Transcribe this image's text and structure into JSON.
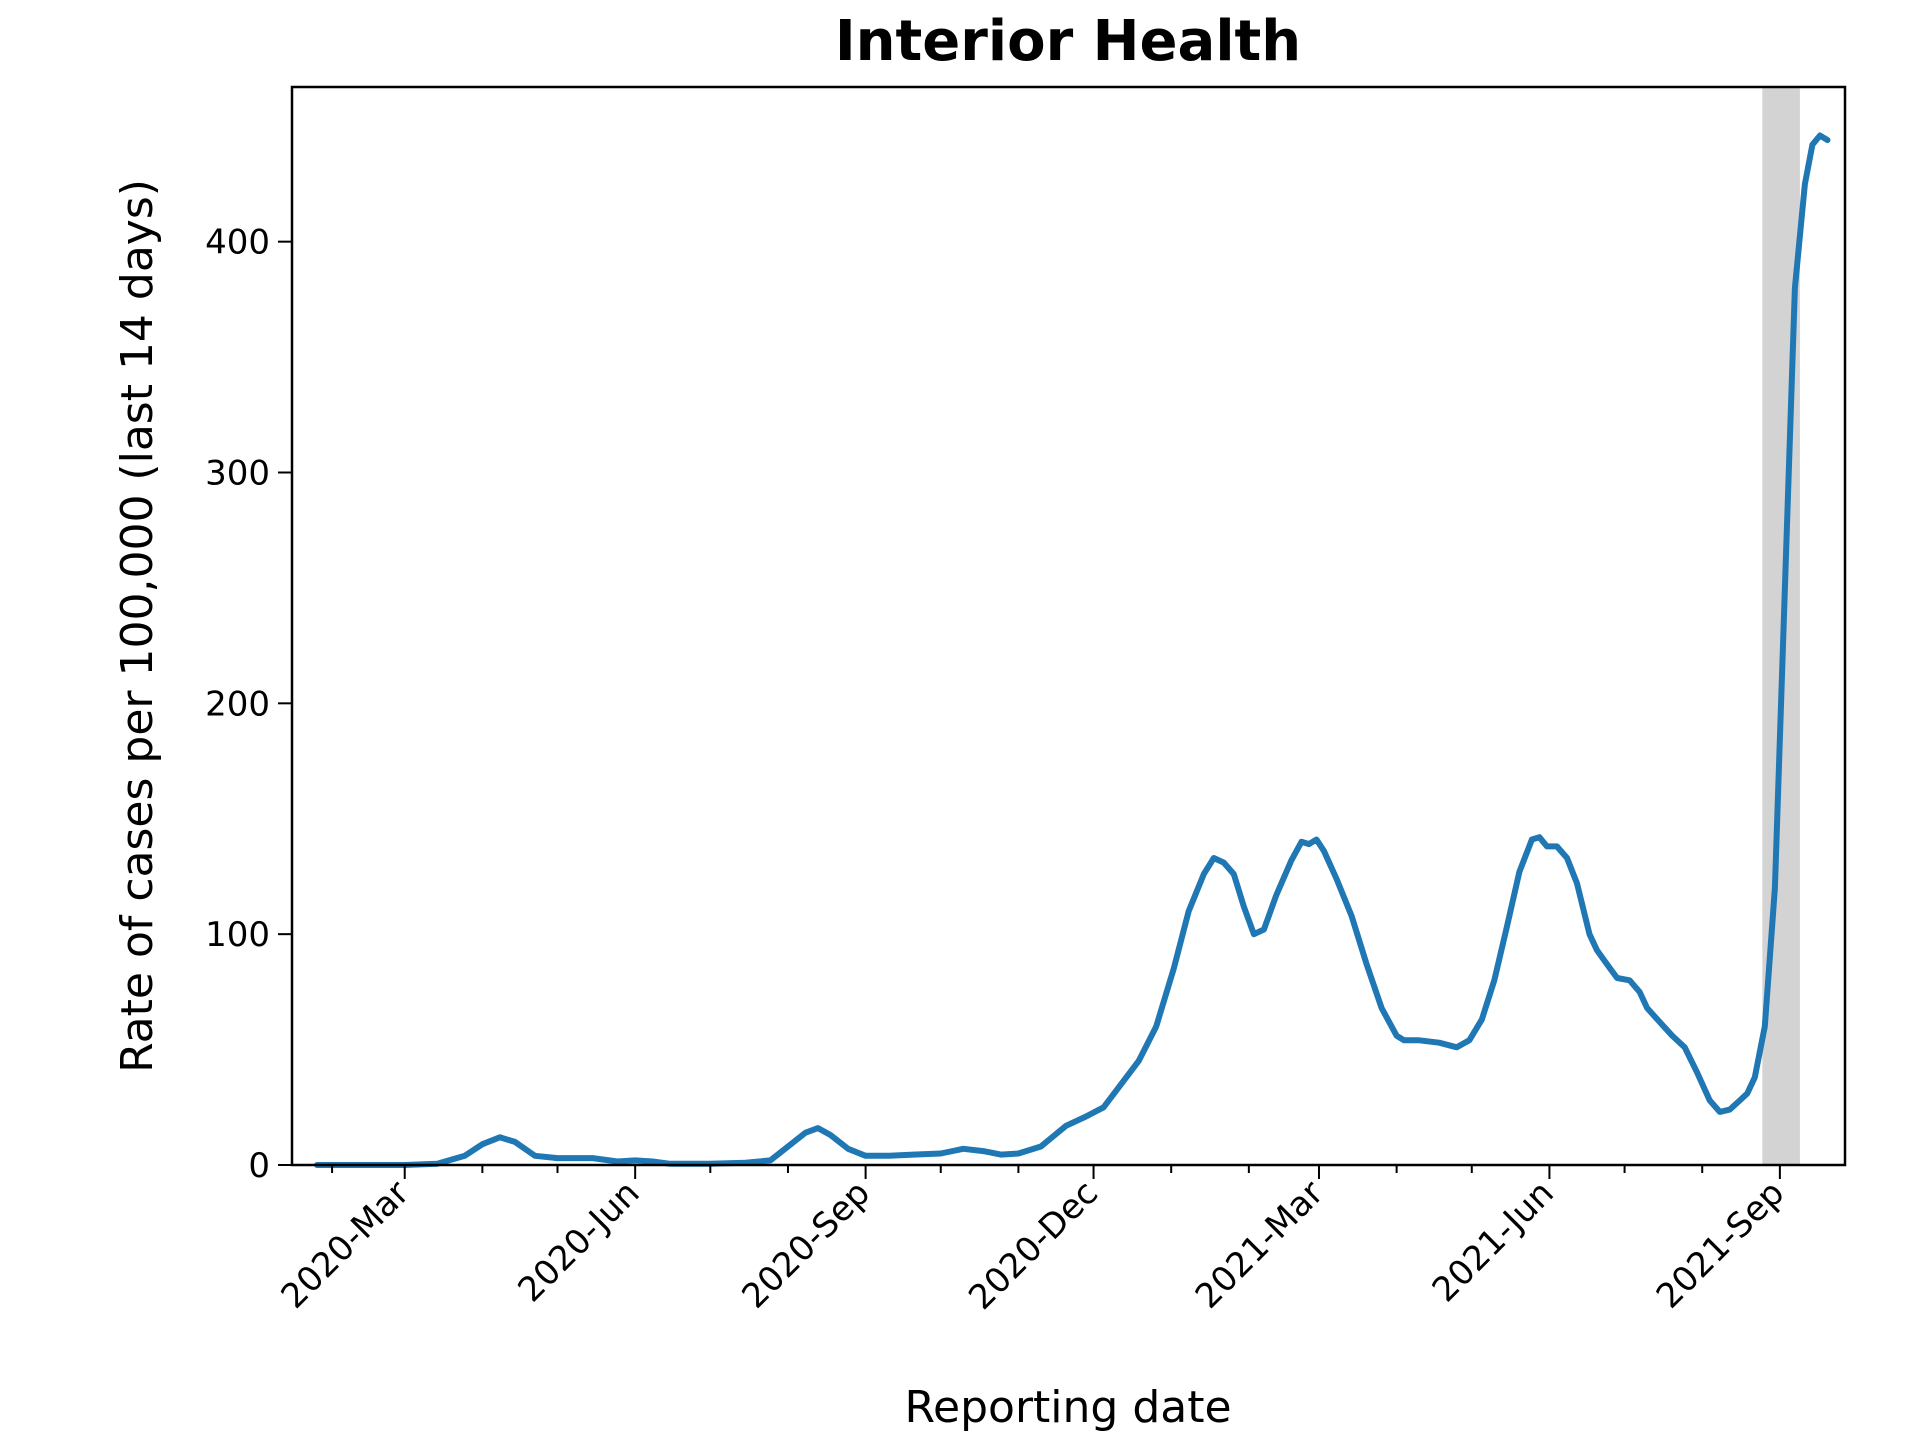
{
  "chart_data": {
    "type": "line",
    "title": "Interior Health",
    "xlabel": "Reporting date",
    "ylabel": "Rate of cases per 100,000 (last 14 days)",
    "x_tick_labels": [
      "2020-Mar",
      "2020-Jun",
      "2020-Sep",
      "2020-Dec",
      "2021-Mar",
      "2021-Jun",
      "2021-Sep"
    ],
    "y_tick_labels": [
      "0",
      "100",
      "200",
      "300",
      "400"
    ],
    "ylim": [
      0,
      467
    ],
    "xlim": [
      "2020-01-16",
      "2021-09-27"
    ],
    "grid": false,
    "line_color": "#1f77b4",
    "shaded_period": {
      "start": "2021-08-25",
      "end": "2021-09-09",
      "color": "#d3d3d3"
    },
    "series": [
      {
        "points": [
          [
            "2020-01-26",
            0
          ],
          [
            "2020-02-10",
            0
          ],
          [
            "2020-03-01",
            0
          ],
          [
            "2020-03-14",
            0.5
          ],
          [
            "2020-03-25",
            4
          ],
          [
            "2020-04-01",
            9
          ],
          [
            "2020-04-08",
            12
          ],
          [
            "2020-04-14",
            10
          ],
          [
            "2020-04-22",
            4
          ],
          [
            "2020-05-01",
            3
          ],
          [
            "2020-05-15",
            3
          ],
          [
            "2020-05-25",
            1.5
          ],
          [
            "2020-06-01",
            2
          ],
          [
            "2020-06-08",
            1.5
          ],
          [
            "2020-06-15",
            0.5
          ],
          [
            "2020-07-01",
            0.5
          ],
          [
            "2020-07-15",
            1
          ],
          [
            "2020-07-25",
            2
          ],
          [
            "2020-08-01",
            8
          ],
          [
            "2020-08-08",
            14
          ],
          [
            "2020-08-13",
            16
          ],
          [
            "2020-08-18",
            13
          ],
          [
            "2020-08-25",
            7
          ],
          [
            "2020-09-01",
            4
          ],
          [
            "2020-09-10",
            4
          ],
          [
            "2020-09-20",
            4.5
          ],
          [
            "2020-10-01",
            5
          ],
          [
            "2020-10-10",
            7
          ],
          [
            "2020-10-18",
            6
          ],
          [
            "2020-10-25",
            4.5
          ],
          [
            "2020-11-01",
            5
          ],
          [
            "2020-11-10",
            8
          ],
          [
            "2020-11-20",
            17
          ],
          [
            "2020-11-28",
            21
          ],
          [
            "2020-12-05",
            25
          ],
          [
            "2020-12-12",
            35
          ],
          [
            "2020-12-19",
            45
          ],
          [
            "2020-12-26",
            60
          ],
          [
            "2021-01-02",
            85
          ],
          [
            "2021-01-08",
            110
          ],
          [
            "2021-01-14",
            126
          ],
          [
            "2021-01-18",
            133
          ],
          [
            "2021-01-22",
            131
          ],
          [
            "2021-01-26",
            126
          ],
          [
            "2021-01-30",
            112
          ],
          [
            "2021-02-03",
            100
          ],
          [
            "2021-02-07",
            102
          ],
          [
            "2021-02-12",
            117
          ],
          [
            "2021-02-18",
            132
          ],
          [
            "2021-02-22",
            140
          ],
          [
            "2021-02-25",
            139
          ],
          [
            "2021-02-28",
            141
          ],
          [
            "2021-03-03",
            136
          ],
          [
            "2021-03-08",
            124
          ],
          [
            "2021-03-14",
            108
          ],
          [
            "2021-03-20",
            87
          ],
          [
            "2021-03-26",
            68
          ],
          [
            "2021-04-01",
            56
          ],
          [
            "2021-04-04",
            54
          ],
          [
            "2021-04-10",
            54
          ],
          [
            "2021-04-18",
            53
          ],
          [
            "2021-04-25",
            51
          ],
          [
            "2021-04-30",
            54
          ],
          [
            "2021-05-05",
            63
          ],
          [
            "2021-05-10",
            80
          ],
          [
            "2021-05-15",
            103
          ],
          [
            "2021-05-20",
            127
          ],
          [
            "2021-05-25",
            141
          ],
          [
            "2021-05-28",
            142
          ],
          [
            "2021-05-31",
            138
          ],
          [
            "2021-06-04",
            138
          ],
          [
            "2021-06-08",
            133
          ],
          [
            "2021-06-12",
            122
          ],
          [
            "2021-06-17",
            100
          ],
          [
            "2021-06-20",
            93
          ],
          [
            "2021-06-24",
            87
          ],
          [
            "2021-06-28",
            81
          ],
          [
            "2021-07-03",
            80
          ],
          [
            "2021-07-07",
            75
          ],
          [
            "2021-07-10",
            68
          ],
          [
            "2021-07-15",
            62
          ],
          [
            "2021-07-20",
            56
          ],
          [
            "2021-07-25",
            51
          ],
          [
            "2021-07-30",
            40
          ],
          [
            "2021-08-04",
            28
          ],
          [
            "2021-08-08",
            23
          ],
          [
            "2021-08-12",
            24
          ],
          [
            "2021-08-16",
            28
          ],
          [
            "2021-08-19",
            31
          ],
          [
            "2021-08-22",
            38
          ],
          [
            "2021-08-26",
            60
          ],
          [
            "2021-08-30",
            120
          ],
          [
            "2021-09-03",
            250
          ],
          [
            "2021-09-07",
            380
          ],
          [
            "2021-09-11",
            425
          ],
          [
            "2021-09-14",
            442
          ],
          [
            "2021-09-17",
            446
          ],
          [
            "2021-09-20",
            444
          ]
        ]
      }
    ]
  }
}
